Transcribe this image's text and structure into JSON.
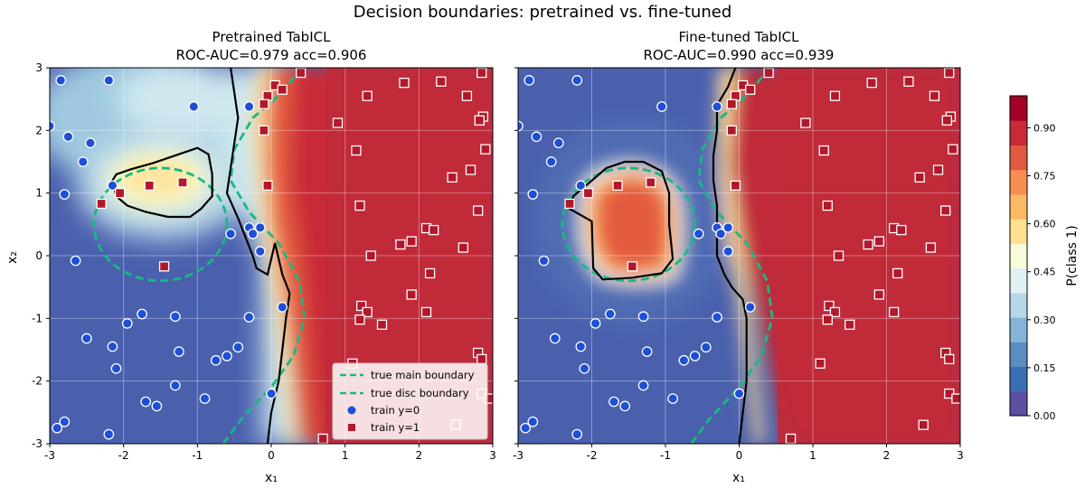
{
  "figure": {
    "suptitle": "Decision boundaries: pretrained vs. fine-tuned"
  },
  "colors": {
    "class0_marker": "#1f4fd8",
    "class1_marker": "#b2182b",
    "true_boundary": "#18b982",
    "model_boundary": "#000000",
    "colormap": [
      "#5e4fa2",
      "#3a6fb4",
      "#5b8dc1",
      "#86b3d8",
      "#b7d7e8",
      "#e0f0f3",
      "#f7fbd9",
      "#fee090",
      "#fdb863",
      "#f88d52",
      "#e05a3f",
      "#c92a39",
      "#a50026"
    ]
  },
  "chart_data": [
    {
      "type": "contour",
      "title": "Pretrained TabICL",
      "subtitle": "ROC-AUC=0.979  acc=0.906",
      "xlabel": "x₁",
      "ylabel": "x₂",
      "xlim": [
        -3,
        3
      ],
      "ylim": [
        -3,
        3
      ],
      "xticks": [
        -3,
        -2,
        -1,
        0,
        1,
        2,
        3
      ],
      "yticks": [
        -3,
        -2,
        -1,
        0,
        1,
        2,
        3
      ],
      "grid": true,
      "decision_boundary_main": [
        [
          -0.55,
          3
        ],
        [
          -0.5,
          2.6
        ],
        [
          -0.45,
          2.2
        ],
        [
          -0.5,
          1.8
        ],
        [
          -0.55,
          1.4
        ],
        [
          -0.6,
          1.0
        ],
        [
          -0.45,
          0.6
        ],
        [
          -0.35,
          0.3
        ],
        [
          -0.25,
          0.0
        ],
        [
          -0.2,
          -0.2
        ],
        [
          -0.05,
          -0.3
        ],
        [
          0.05,
          0.2
        ],
        [
          0.15,
          -0.3
        ],
        [
          0.25,
          -0.6
        ],
        [
          0.2,
          -1.0
        ],
        [
          0.15,
          -1.5
        ],
        [
          0.1,
          -2.0
        ],
        [
          0.0,
          -2.5
        ],
        [
          -0.05,
          -3
        ]
      ],
      "decision_boundary_blob": [
        [
          -2.15,
          1.2
        ],
        [
          -2.1,
          0.95
        ],
        [
          -1.95,
          0.8
        ],
        [
          -1.7,
          0.7
        ],
        [
          -1.4,
          0.62
        ],
        [
          -1.1,
          0.62
        ],
        [
          -0.95,
          0.75
        ],
        [
          -0.8,
          0.95
        ],
        [
          -0.8,
          1.3
        ],
        [
          -0.85,
          1.62
        ],
        [
          -1.0,
          1.72
        ],
        [
          -1.3,
          1.6
        ],
        [
          -1.6,
          1.48
        ],
        [
          -1.9,
          1.38
        ],
        [
          -2.1,
          1.3
        ]
      ],
      "series": [
        {
          "name": "train y=0",
          "marker": "circle",
          "points": [
            [
              -2.85,
              2.8
            ],
            [
              -2.2,
              2.8
            ],
            [
              -1.05,
              2.38
            ],
            [
              -0.3,
              2.38
            ],
            [
              -3.0,
              2.07
            ],
            [
              -2.75,
              1.9
            ],
            [
              -2.45,
              1.8
            ],
            [
              -2.55,
              1.5
            ],
            [
              -2.15,
              1.12
            ],
            [
              -2.8,
              0.98
            ],
            [
              -0.3,
              0.45
            ],
            [
              -0.15,
              0.45
            ],
            [
              -0.25,
              0.35
            ],
            [
              -0.15,
              0.07
            ],
            [
              -2.65,
              -0.08
            ],
            [
              -0.55,
              0.35
            ],
            [
              -1.75,
              -0.93
            ],
            [
              -1.3,
              -0.97
            ],
            [
              -0.3,
              -0.98
            ],
            [
              0.15,
              -0.82
            ],
            [
              -1.95,
              -1.08
            ],
            [
              -2.5,
              -1.32
            ],
            [
              -2.15,
              -1.45
            ],
            [
              -1.25,
              -1.53
            ],
            [
              -0.45,
              -1.46
            ],
            [
              -0.75,
              -1.67
            ],
            [
              -0.6,
              -1.6
            ],
            [
              -2.1,
              -1.8
            ],
            [
              -1.3,
              -2.07
            ],
            [
              -0.9,
              -2.28
            ],
            [
              -1.7,
              -2.33
            ],
            [
              -1.55,
              -2.4
            ],
            [
              0.0,
              -2.2
            ],
            [
              -2.8,
              -2.65
            ],
            [
              -2.9,
              -2.75
            ],
            [
              -2.2,
              -2.85
            ]
          ]
        },
        {
          "name": "train y=1",
          "marker": "square",
          "points": [
            [
              0.4,
              2.92
            ],
            [
              2.85,
              2.92
            ],
            [
              0.05,
              2.72
            ],
            [
              -0.05,
              2.55
            ],
            [
              0.15,
              2.65
            ],
            [
              1.8,
              2.76
            ],
            [
              2.3,
              2.78
            ],
            [
              1.3,
              2.55
            ],
            [
              2.65,
              2.55
            ],
            [
              -0.1,
              2.42
            ],
            [
              2.87,
              2.22
            ],
            [
              2.82,
              2.16
            ],
            [
              0.9,
              2.12
            ],
            [
              -0.1,
              2.0
            ],
            [
              2.9,
              1.7
            ],
            [
              1.15,
              1.68
            ],
            [
              2.7,
              1.37
            ],
            [
              2.45,
              1.25
            ],
            [
              -0.05,
              1.12
            ],
            [
              1.2,
              0.8
            ],
            [
              2.8,
              0.72
            ],
            [
              2.1,
              0.44
            ],
            [
              2.2,
              0.41
            ],
            [
              1.9,
              0.23
            ],
            [
              1.75,
              0.18
            ],
            [
              2.6,
              0.13
            ],
            [
              1.35,
              0.0
            ],
            [
              2.15,
              -0.28
            ],
            [
              1.9,
              -0.62
            ],
            [
              1.22,
              -0.8
            ],
            [
              1.3,
              -0.9
            ],
            [
              2.1,
              -0.9
            ],
            [
              1.2,
              -1.02
            ],
            [
              1.5,
              -1.1
            ],
            [
              2.8,
              -1.55
            ],
            [
              2.85,
              -1.65
            ],
            [
              1.1,
              -1.72
            ],
            [
              2.85,
              -2.2
            ],
            [
              2.95,
              -2.28
            ],
            [
              2.5,
              -2.7
            ],
            [
              0.7,
              -2.92
            ],
            [
              -2.3,
              0.83
            ],
            [
              -2.05,
              1.0
            ],
            [
              -1.65,
              1.12
            ],
            [
              -1.2,
              1.17
            ],
            [
              -1.45,
              -0.17
            ]
          ]
        }
      ],
      "legend": {
        "position": "lower-right",
        "entries": [
          "true main boundary",
          "true disc boundary",
          "train y=0",
          "train y=1"
        ]
      }
    },
    {
      "type": "contour",
      "title": "Fine-tuned TabICL",
      "subtitle": "ROC-AUC=0.990  acc=0.939",
      "xlabel": "x₁",
      "ylabel": "",
      "xlim": [
        -3,
        3
      ],
      "ylim": [
        -3,
        3
      ],
      "xticks": [
        -3,
        -2,
        -1,
        0,
        1,
        2,
        3
      ],
      "yticks": [],
      "grid": true,
      "decision_boundary_main": [
        [
          -0.05,
          3
        ],
        [
          -0.15,
          2.7
        ],
        [
          -0.3,
          2.4
        ],
        [
          -0.3,
          2.0
        ],
        [
          -0.35,
          1.6
        ],
        [
          -0.35,
          1.2
        ],
        [
          -0.3,
          0.8
        ],
        [
          -0.3,
          0.4
        ],
        [
          -0.3,
          0.0
        ],
        [
          -0.2,
          -0.3
        ],
        [
          -0.1,
          -0.5
        ],
        [
          0.05,
          -0.7
        ],
        [
          0.1,
          -1.0
        ],
        [
          0.1,
          -1.5
        ],
        [
          0.1,
          -2.0
        ],
        [
          0.05,
          -2.5
        ],
        [
          0.0,
          -3
        ]
      ],
      "decision_boundary_blob": [
        [
          -2.3,
          0.75
        ],
        [
          -2.0,
          0.55
        ],
        [
          -1.98,
          -0.2
        ],
        [
          -1.85,
          -0.38
        ],
        [
          -1.45,
          -0.35
        ],
        [
          -1.05,
          -0.28
        ],
        [
          -0.9,
          -0.05
        ],
        [
          -0.95,
          0.5
        ],
        [
          -0.95,
          1.0
        ],
        [
          -1.05,
          1.35
        ],
        [
          -1.3,
          1.5
        ],
        [
          -1.55,
          1.5
        ],
        [
          -1.8,
          1.4
        ],
        [
          -2.05,
          1.15
        ],
        [
          -2.25,
          0.95
        ]
      ],
      "series": [
        {
          "name": "train y=0",
          "marker": "circle",
          "points": [
            [
              -2.85,
              2.8
            ],
            [
              -2.2,
              2.8
            ],
            [
              -1.05,
              2.38
            ],
            [
              -0.3,
              2.38
            ],
            [
              -3.0,
              2.07
            ],
            [
              -2.75,
              1.9
            ],
            [
              -2.45,
              1.8
            ],
            [
              -2.55,
              1.5
            ],
            [
              -2.15,
              1.12
            ],
            [
              -2.8,
              0.98
            ],
            [
              -0.3,
              0.45
            ],
            [
              -0.15,
              0.45
            ],
            [
              -0.25,
              0.35
            ],
            [
              -0.15,
              0.07
            ],
            [
              -2.65,
              -0.08
            ],
            [
              -0.55,
              0.35
            ],
            [
              -1.75,
              -0.93
            ],
            [
              -1.3,
              -0.97
            ],
            [
              -0.3,
              -0.98
            ],
            [
              0.15,
              -0.82
            ],
            [
              -1.95,
              -1.08
            ],
            [
              -2.5,
              -1.32
            ],
            [
              -2.15,
              -1.45
            ],
            [
              -1.25,
              -1.53
            ],
            [
              -0.45,
              -1.46
            ],
            [
              -0.75,
              -1.67
            ],
            [
              -0.6,
              -1.6
            ],
            [
              -2.1,
              -1.8
            ],
            [
              -1.3,
              -2.07
            ],
            [
              -0.9,
              -2.28
            ],
            [
              -1.7,
              -2.33
            ],
            [
              -1.55,
              -2.4
            ],
            [
              0.0,
              -2.2
            ],
            [
              -2.8,
              -2.65
            ],
            [
              -2.9,
              -2.75
            ],
            [
              -2.2,
              -2.85
            ]
          ]
        },
        {
          "name": "train y=1",
          "marker": "square",
          "points": [
            [
              0.4,
              2.92
            ],
            [
              2.85,
              2.92
            ],
            [
              0.05,
              2.72
            ],
            [
              -0.05,
              2.55
            ],
            [
              0.15,
              2.65
            ],
            [
              1.8,
              2.76
            ],
            [
              2.3,
              2.78
            ],
            [
              1.3,
              2.55
            ],
            [
              2.65,
              2.55
            ],
            [
              -0.1,
              2.42
            ],
            [
              2.87,
              2.22
            ],
            [
              2.82,
              2.16
            ],
            [
              0.9,
              2.12
            ],
            [
              -0.1,
              2.0
            ],
            [
              2.9,
              1.7
            ],
            [
              1.15,
              1.68
            ],
            [
              2.7,
              1.37
            ],
            [
              2.45,
              1.25
            ],
            [
              -0.05,
              1.12
            ],
            [
              1.2,
              0.8
            ],
            [
              2.8,
              0.72
            ],
            [
              2.1,
              0.44
            ],
            [
              2.2,
              0.41
            ],
            [
              1.9,
              0.23
            ],
            [
              1.75,
              0.18
            ],
            [
              2.6,
              0.13
            ],
            [
              1.35,
              0.0
            ],
            [
              2.15,
              -0.28
            ],
            [
              1.9,
              -0.62
            ],
            [
              1.22,
              -0.8
            ],
            [
              1.3,
              -0.9
            ],
            [
              2.1,
              -0.9
            ],
            [
              1.2,
              -1.02
            ],
            [
              1.5,
              -1.1
            ],
            [
              2.8,
              -1.55
            ],
            [
              2.85,
              -1.65
            ],
            [
              1.1,
              -1.72
            ],
            [
              2.85,
              -2.2
            ],
            [
              2.95,
              -2.28
            ],
            [
              2.5,
              -2.7
            ],
            [
              0.7,
              -2.92
            ],
            [
              -2.3,
              0.83
            ],
            [
              -2.05,
              1.0
            ],
            [
              -1.65,
              1.12
            ],
            [
              -1.2,
              1.17
            ],
            [
              -1.45,
              -0.17
            ]
          ]
        }
      ]
    }
  ],
  "true_boundaries": {
    "main": [
      [
        -0.65,
        -3
      ],
      [
        -0.4,
        -2.6
      ],
      [
        0.0,
        -2.1
      ],
      [
        0.3,
        -1.6
      ],
      [
        0.45,
        -1.0
      ],
      [
        0.38,
        -0.4
      ],
      [
        0.1,
        0.2
      ],
      [
        -0.3,
        0.7
      ],
      [
        -0.55,
        1.2
      ],
      [
        -0.5,
        1.7
      ],
      [
        -0.25,
        2.2
      ],
      [
        0.15,
        2.6
      ],
      [
        0.4,
        3
      ]
    ],
    "disc_center": [
      -1.5,
      0.5
    ],
    "disc_radius": 0.9
  },
  "colorbar": {
    "label": "P(class 1)",
    "range": [
      0,
      1
    ],
    "ticks": [
      "0.00",
      "0.15",
      "0.30",
      "0.45",
      "0.60",
      "0.75",
      "0.90"
    ],
    "tick_values": [
      0.0,
      0.15,
      0.3,
      0.45,
      0.6,
      0.75,
      0.9
    ]
  }
}
